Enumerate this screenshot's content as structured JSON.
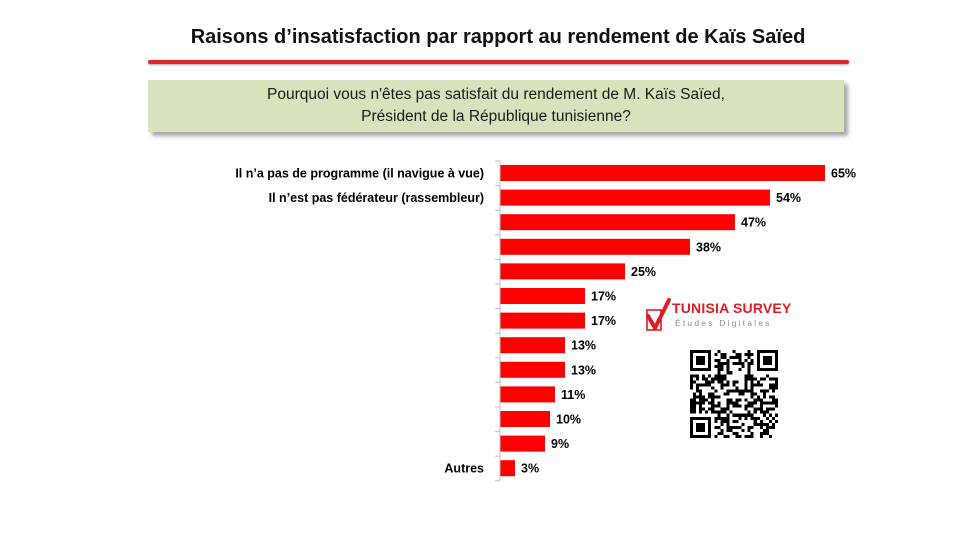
{
  "title": "Raisons d’insatisfaction par rapport au rendement  de Kaïs Saïed",
  "question": {
    "line1": "Pourquoi vous n'êtes pas satisfait du rendement de M. Kaïs Saïed,",
    "line2": "Président de la République tunisienne?"
  },
  "brand": {
    "name": "TUNISIA SURVEY",
    "tagline": "Études Digitales",
    "accent_color": "#e11b22"
  },
  "qr_code": {
    "icon": "qr-code-icon"
  },
  "colors": {
    "bar": "#ff0000",
    "title_rule": "#e3242b",
    "question_bg": "#d6e3bc"
  },
  "chart_data": {
    "type": "bar",
    "orientation": "horizontal",
    "title": "Raisons d’insatisfaction par rapport au rendement  de Kaïs Saïed",
    "categories": [
      "Il n’a pas de programme (il navigue à vue)",
      "Il n’est pas fédérateur (rassembleur)",
      "",
      "",
      "",
      "",
      "",
      "",
      "",
      "",
      "",
      "",
      "Autres"
    ],
    "values": [
      65,
      54,
      47,
      38,
      25,
      17,
      17,
      13,
      13,
      11,
      10,
      9,
      3
    ],
    "value_labels": [
      "65%",
      "54%",
      "47%",
      "38%",
      "25%",
      "17%",
      "17%",
      "13%",
      "13%",
      "11%",
      "10%",
      "9%",
      "3%"
    ],
    "unit": "%",
    "xlim": [
      0,
      65
    ],
    "grid": false,
    "legend": "none"
  }
}
